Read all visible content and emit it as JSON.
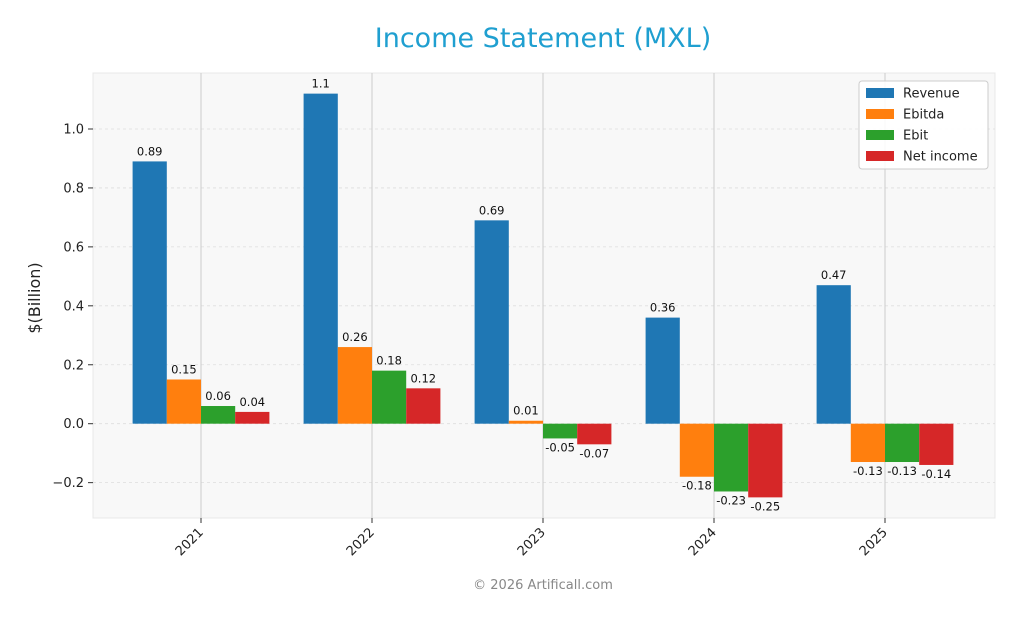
{
  "chart_data": {
    "type": "bar",
    "title": "Income Statement (MXL)",
    "ylabel": "$(Billion)",
    "xlabel": "",
    "categories": [
      "2021",
      "2022",
      "2023",
      "2024",
      "2025"
    ],
    "series": [
      {
        "name": "Revenue",
        "color": "#1f77b4",
        "values": [
          0.89,
          1.12,
          0.69,
          0.36,
          0.47
        ],
        "labels": [
          "0.89",
          "1.1",
          "0.69",
          "0.36",
          "0.47"
        ]
      },
      {
        "name": "Ebitda",
        "color": "#ff7f0e",
        "values": [
          0.15,
          0.26,
          0.01,
          -0.18,
          -0.13
        ],
        "labels": [
          "0.15",
          "0.26",
          "0.01",
          "-0.18",
          "-0.13"
        ]
      },
      {
        "name": "Ebit",
        "color": "#2ca02c",
        "values": [
          0.06,
          0.18,
          -0.05,
          -0.23,
          -0.13
        ],
        "labels": [
          "0.06",
          "0.18",
          "-0.05",
          "-0.23",
          "-0.13"
        ]
      },
      {
        "name": "Net income",
        "color": "#d62728",
        "values": [
          0.04,
          0.12,
          -0.07,
          -0.25,
          -0.14
        ],
        "labels": [
          "0.04",
          "0.12",
          "-0.07",
          "-0.25",
          "-0.14"
        ]
      }
    ],
    "ylim": [
      -0.32,
      1.19
    ],
    "yticks": [
      -0.2,
      0.0,
      0.2,
      0.4,
      0.6,
      0.8,
      1.0
    ],
    "ytick_labels": [
      "−0.2",
      "0.0",
      "0.2",
      "0.4",
      "0.6",
      "0.8",
      "1.0"
    ],
    "grid": true,
    "legend_position": "top-right"
  },
  "footer": {
    "text": "© 2026 Artificall.com"
  }
}
